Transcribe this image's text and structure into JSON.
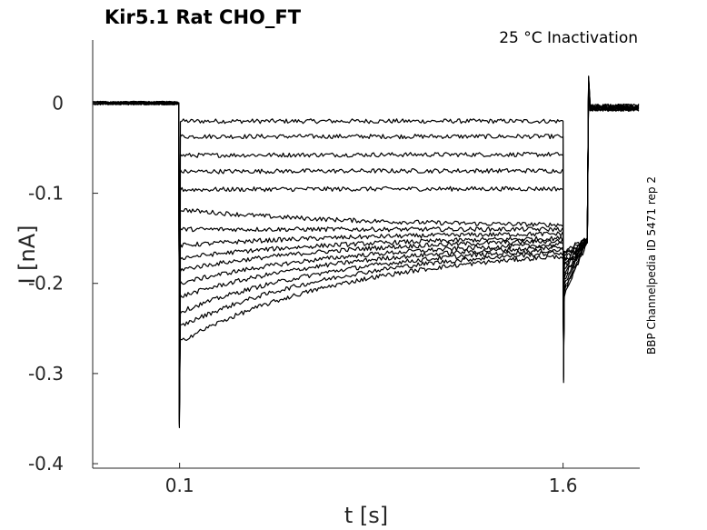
{
  "chart_data": {
    "type": "line",
    "title": "Kir5.1  Rat  CHO_FT",
    "subtitle": "25 °C  Inactivation",
    "side_note": "BBP Channelpedia ID 5471 rep 2",
    "xlabel": "t [s]",
    "ylabel": "I [nA]",
    "xlim": [
      -0.24,
      1.9
    ],
    "ylim": [
      -0.405,
      0.07
    ],
    "x_ticks": [
      0.1,
      1.6
    ],
    "x_tick_labels": [
      "0.1",
      "1.6"
    ],
    "y_ticks": [
      0,
      -0.1,
      -0.2,
      -0.3,
      -0.4
    ],
    "y_tick_labels": [
      "0",
      "-0.1",
      "-0.2",
      "-0.3",
      "-0.4"
    ],
    "grid": false,
    "line_color": "#000000",
    "protocol": {
      "baseline_before": 0.0,
      "step_on_time": 0.1,
      "step_off_time": 1.6,
      "tail_end_time": 1.7,
      "trace_end_time": 1.9
    },
    "series": [
      {
        "start": -0.02,
        "end": -0.02,
        "tail": -0.165
      },
      {
        "start": -0.037,
        "end": -0.037,
        "tail": -0.168
      },
      {
        "start": -0.058,
        "end": -0.057,
        "tail": -0.171
      },
      {
        "start": -0.076,
        "end": -0.075,
        "tail": -0.174
      },
      {
        "start": -0.096,
        "end": -0.095,
        "tail": -0.177
      },
      {
        "start": -0.118,
        "end": -0.135,
        "tail": -0.18
      },
      {
        "start": -0.14,
        "end": -0.14,
        "tail": -0.183
      },
      {
        "start": -0.158,
        "end": -0.145,
        "tail": -0.186
      },
      {
        "start": -0.172,
        "end": -0.15,
        "tail": -0.19
      },
      {
        "start": -0.185,
        "end": -0.153,
        "tail": -0.194
      },
      {
        "start": -0.2,
        "end": -0.157,
        "tail": -0.198
      },
      {
        "start": -0.215,
        "end": -0.16,
        "tail": -0.202
      },
      {
        "start": -0.232,
        "end": -0.163,
        "tail": -0.207
      },
      {
        "start": -0.248,
        "end": -0.166,
        "tail": -0.212
      },
      {
        "start": -0.265,
        "end": -0.17,
        "tail": -0.218
      }
    ]
  }
}
